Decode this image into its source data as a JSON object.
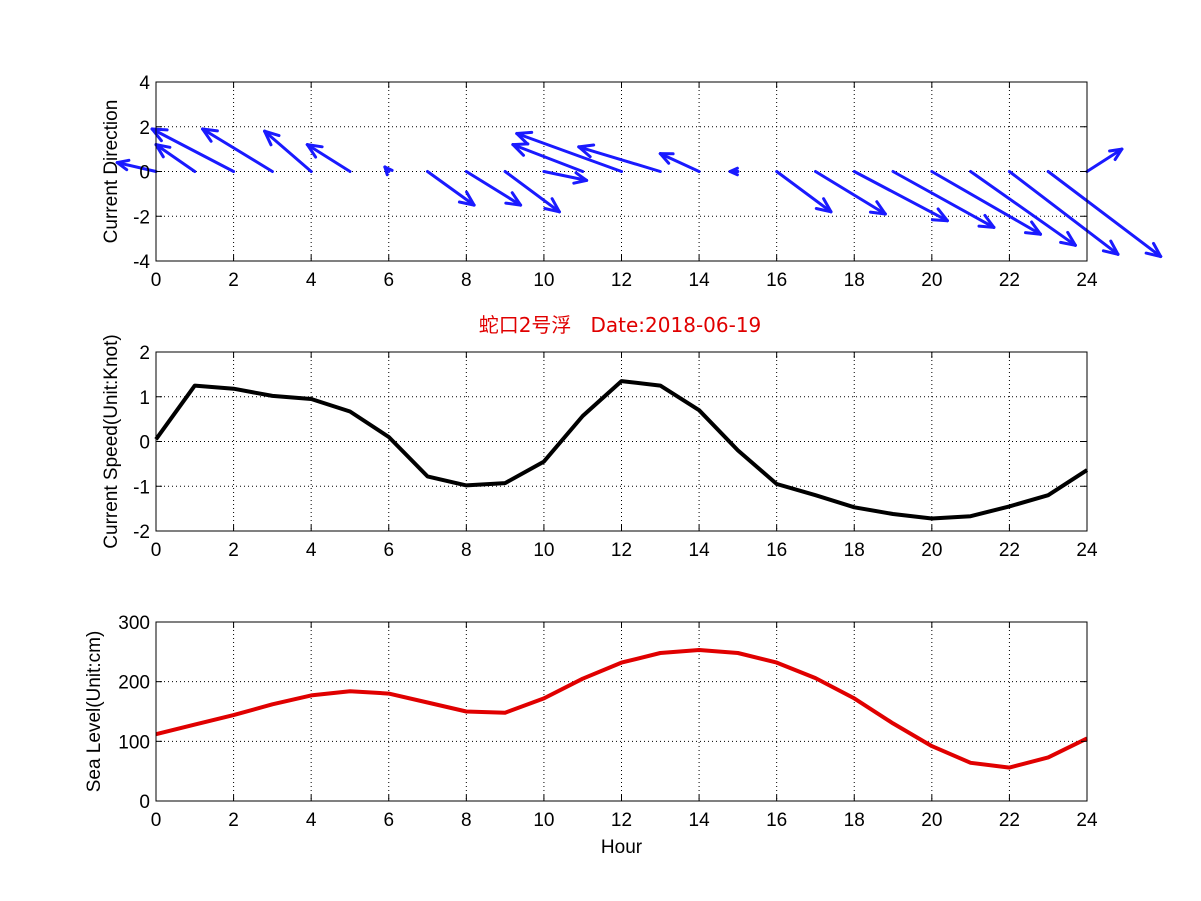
{
  "figure_title": "蛇口2号浮   Date:2018-06-19",
  "chart_data": [
    {
      "type": "quiver",
      "ylabel": "Current Direction",
      "xlim": [
        0,
        24
      ],
      "ylim": [
        -4,
        4
      ],
      "xticks": [
        0,
        2,
        4,
        6,
        8,
        10,
        12,
        14,
        16,
        18,
        20,
        22,
        24
      ],
      "yticks": [
        -4,
        -2,
        0,
        2,
        4
      ],
      "grid": true,
      "arrow_color": "#1a1aff",
      "hours": [
        0,
        1,
        2,
        3,
        4,
        5,
        6,
        7,
        8,
        9,
        10,
        11,
        12,
        13,
        14,
        15,
        16,
        17,
        18,
        19,
        20,
        21,
        22,
        23,
        24
      ],
      "u": [
        -1.0,
        -1.0,
        -2.1,
        -1.8,
        -1.2,
        -1.1,
        -0.1,
        1.2,
        1.4,
        1.4,
        1.1,
        -1.8,
        -2.7,
        -2.1,
        -1.0,
        -0.2,
        1.4,
        1.8,
        2.4,
        2.6,
        2.8,
        2.7,
        2.8,
        2.9,
        0.9
      ],
      "v": [
        0.4,
        1.2,
        1.9,
        1.9,
        1.8,
        1.2,
        0.2,
        -1.5,
        -1.5,
        -1.8,
        -0.4,
        1.2,
        1.7,
        1.1,
        0.8,
        0.0,
        -1.8,
        -1.9,
        -2.2,
        -2.5,
        -2.8,
        -3.3,
        -3.7,
        -3.8,
        1.0
      ]
    },
    {
      "type": "line",
      "ylabel": "Current Speed(Unit:Knot)",
      "xlim": [
        0,
        24
      ],
      "ylim": [
        -2,
        2
      ],
      "xticks": [
        0,
        2,
        4,
        6,
        8,
        10,
        12,
        14,
        16,
        18,
        20,
        22,
        24
      ],
      "yticks": [
        -2,
        -1,
        0,
        1,
        2
      ],
      "grid": true,
      "color": "#000000",
      "x": [
        0,
        1,
        2,
        3,
        4,
        5,
        6,
        7,
        8,
        9,
        10,
        11,
        12,
        13,
        14,
        15,
        16,
        17,
        18,
        19,
        20,
        21,
        22,
        23,
        24
      ],
      "y": [
        0.05,
        1.25,
        1.18,
        1.02,
        0.95,
        0.67,
        0.1,
        -0.78,
        -0.98,
        -0.93,
        -0.45,
        0.57,
        1.35,
        1.25,
        0.7,
        -0.2,
        -0.95,
        -1.2,
        -1.47,
        -1.62,
        -1.72,
        -1.67,
        -1.45,
        -1.2,
        -0.64
      ]
    },
    {
      "type": "line",
      "ylabel": "Sea Level(Unit:cm)",
      "xlabel": "Hour",
      "xlim": [
        0,
        24
      ],
      "ylim": [
        0,
        300
      ],
      "xticks": [
        0,
        2,
        4,
        6,
        8,
        10,
        12,
        14,
        16,
        18,
        20,
        22,
        24
      ],
      "yticks": [
        0,
        100,
        200,
        300
      ],
      "grid": true,
      "color": "#e00000",
      "x": [
        0,
        1,
        2,
        3,
        4,
        5,
        6,
        7,
        8,
        9,
        10,
        11,
        12,
        13,
        14,
        15,
        16,
        17,
        18,
        19,
        20,
        21,
        22,
        23,
        24
      ],
      "y": [
        112,
        128,
        144,
        162,
        177,
        184,
        180,
        165,
        150,
        148,
        172,
        205,
        232,
        248,
        253,
        248,
        232,
        206,
        172,
        130,
        92,
        64,
        56,
        73,
        105
      ]
    }
  ]
}
